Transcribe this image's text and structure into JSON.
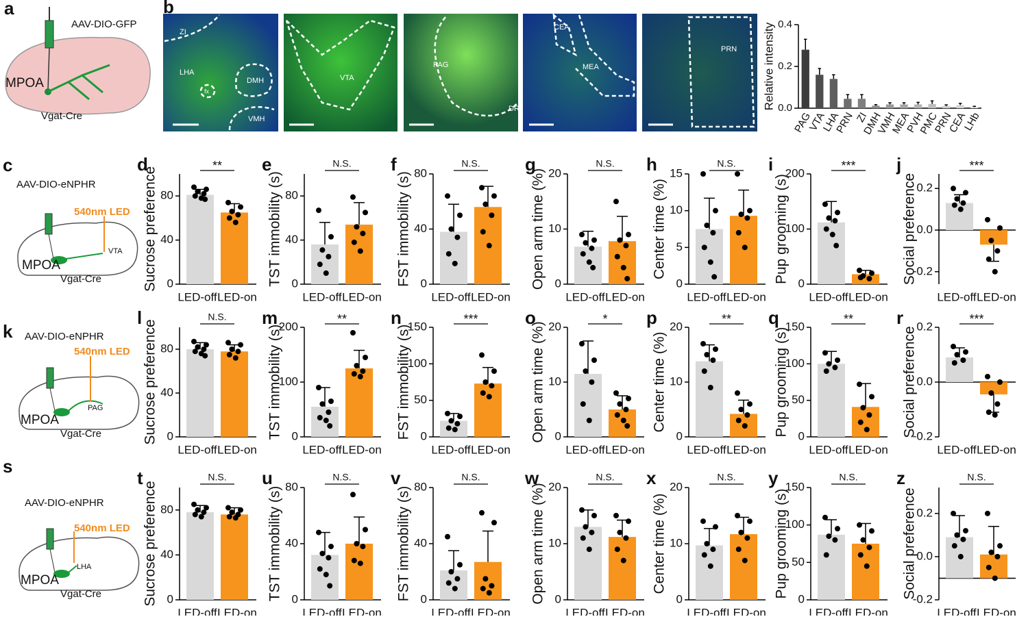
{
  "schematics": [
    {
      "panel": "a",
      "virus": "AAV-DIO-GFP",
      "region": "MPOA",
      "mouse": "Vgat-Cre"
    },
    {
      "panel": "c",
      "virus": "AAV-DIO-eNPHR",
      "led": "540nm LED",
      "region": "MPOA",
      "target": "VTA",
      "mouse": "Vgat-Cre"
    },
    {
      "panel": "k",
      "virus": "AAV-DIO-eNPHR",
      "led": "540nm LED",
      "region": "MPOA",
      "target": "PAG",
      "mouse": "Vgat-Cre"
    },
    {
      "panel": "s",
      "virus": "AAV-DIO-eNPHR",
      "led": "540nm LED",
      "region": "MPOA",
      "target": "LHA",
      "mouse": "Vgat-Cre"
    }
  ],
  "images": {
    "panel": "b",
    "labels": [
      [
        "ZI",
        "LHA",
        "fx",
        "DMH",
        "VMH"
      ],
      [
        "VTA"
      ],
      [
        "PAG",
        "DR"
      ],
      [
        "CEA",
        "MEA"
      ],
      [
        "PRN"
      ]
    ]
  },
  "chart_data": [
    {
      "type": "bar",
      "ylabel": "Relative intensity",
      "categories": [
        "PAG",
        "VTA",
        "LHA",
        "PRN",
        "ZI",
        "DMH",
        "VMH",
        "MEA",
        "PVH",
        "PMC",
        "PRN",
        "CEA",
        "LHb"
      ],
      "values": [
        0.28,
        0.16,
        0.14,
        0.045,
        0.045,
        0.012,
        0.018,
        0.018,
        0.018,
        0.02,
        0.01,
        0.015,
        0.005
      ],
      "errors": [
        0.05,
        0.03,
        0.02,
        0.02,
        0.02,
        0.005,
        0.008,
        0.008,
        0.01,
        0.015,
        0.006,
        0.008,
        0.004
      ],
      "ylim": [
        0,
        0.4
      ],
      "yticks": [
        {
          "value": 0,
          "label": "0.0"
        },
        0.2,
        0.4
      ],
      "colors": [
        "#3c3c3c",
        "#4d4d4d",
        "#5e5e5e",
        "#6f6f6f",
        "#808080",
        "#8c8c8c",
        "#999999",
        "#a6a6a6",
        "#b3b3b3",
        "#bfbfbf",
        "#cccccc",
        "#d4d4d4",
        "#dedede"
      ]
    },
    {
      "type": "bar",
      "panel": "d",
      "ylabel": "Sucrose preference",
      "categories": [
        "LED-off",
        "LED-on"
      ],
      "values": [
        81,
        65
      ],
      "errors": [
        5,
        8
      ],
      "points": [
        [
          88,
          86,
          84,
          82,
          80,
          78,
          77
        ],
        [
          74,
          70,
          66,
          63,
          60,
          56
        ]
      ],
      "significance": "**",
      "ylim": [
        0,
        100
      ],
      "yticks": [
        0,
        40,
        80
      ],
      "colors": [
        "#d9d9d9",
        "#f7941d"
      ]
    },
    {
      "type": "bar",
      "panel": "e",
      "ylabel": "TST immobility (s)",
      "categories": [
        "LED-off",
        "LED-on"
      ],
      "values": [
        36,
        54
      ],
      "errors": [
        20,
        20
      ],
      "points": [
        [
          67,
          43,
          31,
          25,
          18,
          10
        ],
        [
          79,
          65,
          52,
          46,
          38,
          30
        ]
      ],
      "significance": "N.S.",
      "ylim": [
        0,
        100
      ],
      "yticks": [
        0,
        40,
        80
      ],
      "colors": [
        "#d9d9d9",
        "#f7941d"
      ]
    },
    {
      "type": "bar",
      "panel": "f",
      "ylabel": "FST immobility (s)",
      "categories": [
        "LED-off",
        "LED-on"
      ],
      "values": [
        38,
        56
      ],
      "errors": [
        20,
        15
      ],
      "points": [
        [
          64,
          50,
          40,
          34,
          22,
          15
        ],
        [
          70,
          64,
          58,
          50,
          38,
          28
        ]
      ],
      "significance": "N.S.",
      "ylim": [
        0,
        80
      ],
      "yticks": [
        0,
        40,
        80
      ],
      "colors": [
        "#d9d9d9",
        "#f7941d"
      ]
    },
    {
      "type": "bar",
      "panel": "g",
      "ylabel": "Open arm time (%)",
      "categories": [
        "LED-off",
        "LED-on"
      ],
      "values": [
        6.8,
        7.8
      ],
      "errors": [
        2.8,
        4.5
      ],
      "points": [
        [
          9,
          8,
          7.5,
          6.5,
          5.5,
          4,
          3
        ],
        [
          15,
          9,
          8,
          7,
          5,
          3,
          1
        ]
      ],
      "significance": "N.S.",
      "ylim": [
        0,
        20
      ],
      "yticks": [
        0,
        10,
        20
      ],
      "colors": [
        "#d9d9d9",
        "#f7941d"
      ]
    },
    {
      "type": "bar",
      "panel": "h",
      "ylabel": "Center time (%)",
      "categories": [
        "LED-off",
        "LED-on"
      ],
      "values": [
        7.5,
        9.3
      ],
      "errors": [
        4.2,
        3.5
      ],
      "points": [
        [
          15,
          10,
          8,
          7,
          5,
          3,
          1
        ],
        [
          15,
          10,
          9.5,
          9,
          7,
          5
        ]
      ],
      "significance": "N.S.",
      "ylim": [
        0,
        15
      ],
      "yticks": [
        0,
        5,
        10,
        15
      ],
      "colors": [
        "#d9d9d9",
        "#f7941d"
      ]
    },
    {
      "type": "bar",
      "panel": "i",
      "ylabel": "Pup grooming (s)",
      "categories": [
        "LED-off",
        "LED-on"
      ],
      "values": [
        112,
        18
      ],
      "errors": [
        38,
        7
      ],
      "points": [
        [
          145,
          130,
          120,
          115,
          100,
          90,
          70
        ],
        [
          25,
          20,
          15,
          10,
          12
        ]
      ],
      "significance": "***",
      "ylim": [
        0,
        200
      ],
      "yticks": [
        0,
        100,
        200
      ],
      "colors": [
        "#d9d9d9",
        "#f7941d"
      ]
    },
    {
      "type": "bar",
      "panel": "j",
      "ylabel": "Social preference",
      "categories": [
        "LED-off",
        "LED-on"
      ],
      "values": [
        0.13,
        -0.07
      ],
      "errors": [
        0.04,
        0.08
      ],
      "points": [
        [
          0.2,
          0.18,
          0.15,
          0.13,
          0.12,
          0.1
        ],
        [
          0.05,
          0.01,
          -0.05,
          -0.1,
          -0.14,
          -0.2
        ]
      ],
      "significance": "***",
      "ylim": [
        -0.26,
        0.27
      ],
      "yticks": [
        -0.2,
        {
          "value": 0,
          "label": "0.0"
        },
        0.2
      ],
      "baseline": 0,
      "colors": [
        "#d9d9d9",
        "#f7941d"
      ]
    },
    {
      "type": "bar",
      "panel": "l",
      "ylabel": "Sucrose preference",
      "categories": [
        "LED-off",
        "LED-on"
      ],
      "values": [
        80,
        78
      ],
      "errors": [
        6,
        6
      ],
      "points": [
        [
          87,
          84,
          82,
          80,
          78,
          76,
          74
        ],
        [
          86,
          84,
          80,
          78,
          75,
          72
        ]
      ],
      "significance": "N.S.",
      "ylim": [
        0,
        100
      ],
      "yticks": [
        0,
        40,
        80
      ],
      "colors": [
        "#d9d9d9",
        "#f7941d"
      ]
    },
    {
      "type": "bar",
      "panel": "m",
      "ylabel": "TST immobility (s)",
      "categories": [
        "LED-off",
        "LED-on"
      ],
      "values": [
        55,
        125
      ],
      "errors": [
        35,
        33
      ],
      "points": [
        [
          90,
          65,
          60,
          45,
          35,
          30,
          20
        ],
        [
          190,
          145,
          130,
          120,
          115,
          110
        ]
      ],
      "significance": "**",
      "ylim": [
        0,
        200
      ],
      "yticks": [
        0,
        100,
        200
      ],
      "colors": [
        "#d9d9d9",
        "#f7941d"
      ]
    },
    {
      "type": "bar",
      "panel": "n",
      "ylabel": "FST immobility (s)",
      "categories": [
        "LED-off",
        "LED-on"
      ],
      "values": [
        22,
        73
      ],
      "errors": [
        10,
        22
      ],
      "points": [
        [
          32,
          28,
          22,
          18,
          12,
          10
        ],
        [
          112,
          90,
          75,
          70,
          60,
          55
        ]
      ],
      "significance": "***",
      "ylim": [
        0,
        150
      ],
      "yticks": [
        0,
        50,
        100,
        150
      ],
      "colors": [
        "#d9d9d9",
        "#f7941d"
      ]
    },
    {
      "type": "bar",
      "panel": "o",
      "ylabel": "Open arm time (%)",
      "categories": [
        "LED-off",
        "LED-on"
      ],
      "values": [
        11.5,
        5
      ],
      "errors": [
        6,
        2.5
      ],
      "points": [
        [
          17,
          14,
          12,
          10,
          6,
          3
        ],
        [
          8,
          7,
          6,
          5,
          4,
          3,
          2
        ]
      ],
      "significance": "*",
      "ylim": [
        0,
        20
      ],
      "yticks": [
        0,
        10,
        20
      ],
      "colors": [
        "#d9d9d9",
        "#f7941d"
      ]
    },
    {
      "type": "bar",
      "panel": "p",
      "ylabel": "Center time (%)",
      "categories": [
        "LED-off",
        "LED-on"
      ],
      "values": [
        13.8,
        4.2
      ],
      "errors": [
        3,
        2.5
      ],
      "points": [
        [
          17,
          16,
          15,
          14,
          12,
          9
        ],
        [
          8,
          6,
          5,
          4,
          3,
          2
        ]
      ],
      "significance": "**",
      "ylim": [
        0,
        20
      ],
      "yticks": [
        0,
        10,
        20
      ],
      "colors": [
        "#d9d9d9",
        "#f7941d"
      ]
    },
    {
      "type": "bar",
      "panel": "q",
      "ylabel": "Pup grooming (s)",
      "categories": [
        "LED-off",
        "LED-on"
      ],
      "values": [
        100,
        41
      ],
      "errors": [
        17,
        32
      ],
      "points": [
        [
          115,
          105,
          100,
          95,
          90
        ],
        [
          72,
          55,
          40,
          30,
          20,
          10
        ]
      ],
      "significance": "**",
      "ylim": [
        0,
        150
      ],
      "yticks": [
        0,
        50,
        100,
        150
      ],
      "colors": [
        "#d9d9d9",
        "#f7941d"
      ]
    },
    {
      "type": "bar",
      "panel": "r",
      "ylabel": "Social preference",
      "categories": [
        "LED-off",
        "LED-on"
      ],
      "values": [
        0.09,
        -0.045
      ],
      "errors": [
        0.035,
        0.065
      ],
      "points": [
        [
          0.13,
          0.11,
          0.1,
          0.08,
          0.07
        ],
        [
          0.02,
          0,
          -0.04,
          -0.08,
          -0.11,
          -0.12
        ]
      ],
      "significance": "***",
      "ylim": [
        -0.2,
        0.2
      ],
      "yticks": [
        -0.2,
        {
          "value": 0,
          "label": "0.0"
        },
        0.2
      ],
      "baseline": 0,
      "colors": [
        "#d9d9d9",
        "#f7941d"
      ]
    },
    {
      "type": "bar",
      "panel": "t",
      "ylabel": "Sucrose preference",
      "categories": [
        "LED-off",
        "LED-on"
      ],
      "values": [
        78,
        76
      ],
      "errors": [
        6,
        6
      ],
      "points": [
        [
          85,
          82,
          80,
          78,
          76,
          74
        ],
        [
          82,
          80,
          78,
          76,
          74,
          73
        ]
      ],
      "significance": "N.S.",
      "ylim": [
        0,
        100
      ],
      "yticks": [
        0,
        40,
        80
      ],
      "colors": [
        "#d9d9d9",
        "#f7941d"
      ]
    },
    {
      "type": "bar",
      "panel": "u",
      "ylabel": "TST immobility (s)",
      "categories": [
        "LED-off",
        "LED-on"
      ],
      "values": [
        32,
        40
      ],
      "errors": [
        16,
        19
      ],
      "points": [
        [
          48,
          38,
          33,
          30,
          22,
          18,
          10
        ],
        [
          75,
          50,
          40,
          38,
          28,
          26
        ]
      ],
      "significance": "N.S.",
      "ylim": [
        0,
        80
      ],
      "yticks": [
        0,
        40,
        80
      ],
      "colors": [
        "#d9d9d9",
        "#f7941d"
      ]
    },
    {
      "type": "bar",
      "panel": "v",
      "ylabel": "FST immobility (s)",
      "categories": [
        "LED-off",
        "LED-on"
      ],
      "values": [
        21,
        27
      ],
      "errors": [
        14,
        22
      ],
      "points": [
        [
          45,
          25,
          20,
          15,
          12,
          8
        ],
        [
          62,
          55,
          15,
          10,
          8,
          5
        ]
      ],
      "significance": "N.S.",
      "ylim": [
        0,
        80
      ],
      "yticks": [
        0,
        40,
        80
      ],
      "colors": [
        "#d9d9d9",
        "#f7941d"
      ]
    },
    {
      "type": "bar",
      "panel": "w",
      "ylabel": "Open arm time (%)",
      "categories": [
        "LED-off",
        "LED-on"
      ],
      "values": [
        13,
        11.2
      ],
      "errors": [
        3,
        3
      ],
      "points": [
        [
          16,
          15,
          13,
          12,
          11,
          9
        ],
        [
          15,
          14,
          12,
          11,
          9,
          7
        ]
      ],
      "significance": "N.S.",
      "ylim": [
        0,
        20
      ],
      "yticks": [
        0,
        10,
        20
      ],
      "colors": [
        "#d9d9d9",
        "#f7941d"
      ]
    },
    {
      "type": "bar",
      "panel": "x",
      "ylabel": "Center time (%)",
      "categories": [
        "LED-off",
        "LED-on"
      ],
      "values": [
        9.7,
        11.7
      ],
      "errors": [
        3,
        3
      ],
      "points": [
        [
          14,
          13,
          10,
          9,
          8,
          6
        ],
        [
          15,
          14,
          12,
          11,
          9,
          7
        ]
      ],
      "significance": "N.S.",
      "ylim": [
        0,
        20
      ],
      "yticks": [
        0,
        10,
        20
      ],
      "colors": [
        "#d9d9d9",
        "#f7941d"
      ]
    },
    {
      "type": "bar",
      "panel": "y",
      "ylabel": "Pup grooming (s)",
      "categories": [
        "LED-off",
        "LED-on"
      ],
      "values": [
        87,
        75
      ],
      "errors": [
        20,
        27
      ],
      "points": [
        [
          110,
          95,
          85,
          80,
          60
        ],
        [
          100,
          92,
          80,
          70,
          60,
          45
        ]
      ],
      "significance": "N.S.",
      "ylim": [
        0,
        150
      ],
      "yticks": [
        0,
        50,
        100,
        150
      ],
      "colors": [
        "#d9d9d9",
        "#f7941d"
      ]
    },
    {
      "type": "bar",
      "panel": "z",
      "ylabel": "Social preference",
      "categories": [
        "LED-off",
        "LED-on"
      ],
      "values": [
        0.09,
        0.01
      ],
      "errors": [
        0.1,
        0.13
      ],
      "points": [
        [
          0.2,
          0.12,
          0.1,
          0.08,
          0.05,
          0
        ],
        [
          0.2,
          0.05,
          0.02,
          0,
          -0.05,
          -0.1
        ]
      ],
      "significance": "N.S.",
      "ylim": [
        -0.2,
        0.32
      ],
      "yticks": [
        -0.2,
        {
          "value": 0,
          "label": "0.0"
        },
        0.2
      ],
      "baseline": -0.1,
      "colors": [
        "#d9d9d9",
        "#f7941d"
      ]
    }
  ]
}
